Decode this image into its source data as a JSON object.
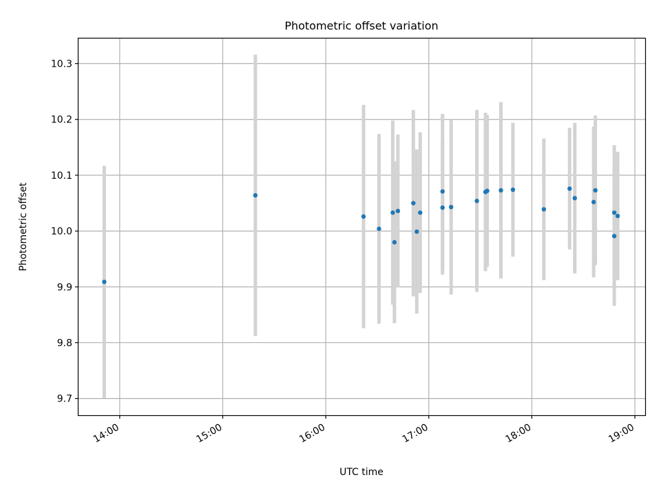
{
  "chart_data": {
    "type": "scatter",
    "title": "Photometric offset variation",
    "xlabel": "UTC time",
    "ylabel": "Photometric offset",
    "x_unit": "UTC time of day",
    "xlim": [
      "13:36",
      "19:06"
    ],
    "ylim": [
      9.67,
      10.345
    ],
    "grid": true,
    "x_ticks": [
      "14:00",
      "15:00",
      "16:00",
      "17:00",
      "18:00",
      "19:00"
    ],
    "y_ticks": [
      "9.7",
      "9.8",
      "9.9",
      "10.0",
      "10.1",
      "10.2",
      "10.3"
    ],
    "series": [
      {
        "marker": "point",
        "error_bars": "symmetric",
        "points": [
          {
            "x": "13:51",
            "y": 9.909,
            "err": 0.208
          },
          {
            "x": "15:19",
            "y": 10.064,
            "err": 0.252
          },
          {
            "x": "16:22",
            "y": 10.026,
            "err": 0.2
          },
          {
            "x": "16:31",
            "y": 10.004,
            "err": 0.17
          },
          {
            "x": "16:39",
            "y": 10.033,
            "err": 0.165
          },
          {
            "x": "16:40",
            "y": 9.98,
            "err": 0.145
          },
          {
            "x": "16:42",
            "y": 10.036,
            "err": 0.137
          },
          {
            "x": "16:51",
            "y": 10.05,
            "err": 0.167
          },
          {
            "x": "16:53",
            "y": 9.999,
            "err": 0.147
          },
          {
            "x": "16:55",
            "y": 10.033,
            "err": 0.144
          },
          {
            "x": "17:08",
            "y": 10.071,
            "err": 0.139
          },
          {
            "x": "17:08",
            "y": 10.042,
            "err": 0.12
          },
          {
            "x": "17:13",
            "y": 10.043,
            "err": 0.157
          },
          {
            "x": "17:28",
            "y": 10.054,
            "err": 0.163
          },
          {
            "x": "17:33",
            "y": 10.07,
            "err": 0.142
          },
          {
            "x": "17:34",
            "y": 10.072,
            "err": 0.136
          },
          {
            "x": "17:42",
            "y": 10.073,
            "err": 0.158
          },
          {
            "x": "17:49",
            "y": 10.074,
            "err": 0.12
          },
          {
            "x": "18:07",
            "y": 10.039,
            "err": 0.127
          },
          {
            "x": "18:22",
            "y": 10.076,
            "err": 0.109
          },
          {
            "x": "18:25",
            "y": 10.059,
            "err": 0.135
          },
          {
            "x": "18:36",
            "y": 10.052,
            "err": 0.135
          },
          {
            "x": "18:37",
            "y": 10.073,
            "err": 0.134
          },
          {
            "x": "18:48",
            "y": 10.033,
            "err": 0.121
          },
          {
            "x": "18:48",
            "y": 9.991,
            "err": 0.125
          },
          {
            "x": "18:50",
            "y": 10.027,
            "err": 0.115
          }
        ]
      }
    ],
    "colors": {
      "point": "#1f77b4",
      "error_bar": "#d3d3d3",
      "grid": "#b0b0b0",
      "axes": "#000000"
    }
  }
}
